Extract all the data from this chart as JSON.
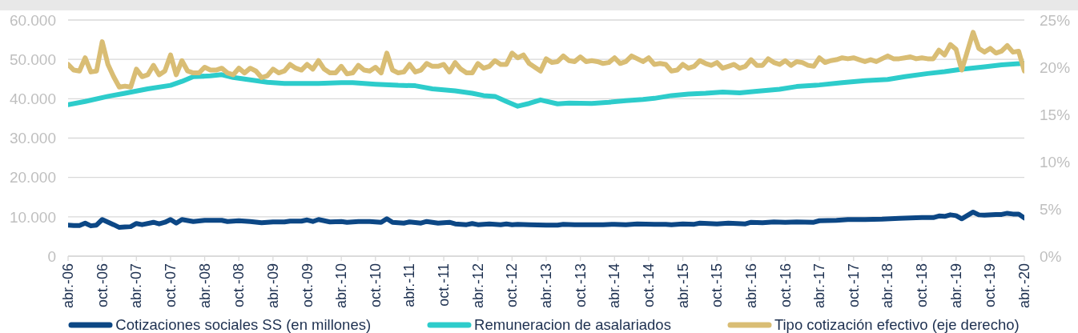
{
  "chart_data": {
    "type": "line",
    "xlim": [
      "2006-04",
      "2020-04"
    ],
    "xticks": [
      {
        "value": "2006-04",
        "label": "abr.-06"
      },
      {
        "value": "2006-10",
        "label": "oct.-06"
      },
      {
        "value": "2007-04",
        "label": "abr.-07"
      },
      {
        "value": "2007-10",
        "label": "oct.-07"
      },
      {
        "value": "2008-04",
        "label": "abr.-08"
      },
      {
        "value": "2008-10",
        "label": "oct.-08"
      },
      {
        "value": "2009-04",
        "label": "abr.-09"
      },
      {
        "value": "2009-10",
        "label": "oct.-09"
      },
      {
        "value": "2010-04",
        "label": "abr.-10"
      },
      {
        "value": "2010-10",
        "label": "oct.-10"
      },
      {
        "value": "2011-04",
        "label": "abr.-11"
      },
      {
        "value": "2011-10",
        "label": "oct.-11"
      },
      {
        "value": "2012-04",
        "label": "abr.-12"
      },
      {
        "value": "2012-10",
        "label": "oct.-12"
      },
      {
        "value": "2013-04",
        "label": "abr.-13"
      },
      {
        "value": "2013-10",
        "label": "oct.-13"
      },
      {
        "value": "2014-04",
        "label": "abr.-14"
      },
      {
        "value": "2014-10",
        "label": "oct.-14"
      },
      {
        "value": "2015-04",
        "label": "abr.-15"
      },
      {
        "value": "2015-10",
        "label": "oct.-15"
      },
      {
        "value": "2016-04",
        "label": "abr.-16"
      },
      {
        "value": "2016-10",
        "label": "oct.-16"
      },
      {
        "value": "2017-04",
        "label": "abr.-17"
      },
      {
        "value": "2017-10",
        "label": "oct.-17"
      },
      {
        "value": "2018-04",
        "label": "abr.-18"
      },
      {
        "value": "2018-10",
        "label": "oct.-18"
      },
      {
        "value": "2019-04",
        "label": "abr.-19"
      },
      {
        "value": "2019-10",
        "label": "oct.-19"
      },
      {
        "value": "2020-04",
        "label": "abr.-20"
      }
    ],
    "ylim": [
      0,
      60000
    ],
    "yticks": [
      0,
      {
        "value": 10000,
        "label": "10.000"
      },
      {
        "value": 20000,
        "label": "20.000"
      },
      {
        "value": 30000,
        "label": "30.000"
      },
      {
        "value": 40000,
        "label": "40.000"
      },
      {
        "value": 50000,
        "label": "50.000"
      },
      {
        "value": 60000,
        "label": "60.000"
      }
    ],
    "y2lim": [
      0,
      25
    ],
    "y2ticks": [
      {
        "value": 0,
        "label": "0%"
      },
      {
        "value": 5,
        "label": "5%"
      },
      {
        "value": 10,
        "label": "10%"
      },
      {
        "value": 15,
        "label": "15%"
      },
      {
        "value": 20,
        "label": "20%"
      },
      {
        "value": 25,
        "label": "25%"
      }
    ],
    "grid": "y",
    "legend": "bottom",
    "series": [
      {
        "name": "Cotizaciones sociales SS (en millones)",
        "color": "#0c4785",
        "x": [
          "2006-04",
          "2006-05",
          "2006-06",
          "2006-07",
          "2006-08",
          "2006-09",
          "2006-10",
          "2006-12",
          "2007-01",
          "2007-02",
          "2007-03",
          "2007-04",
          "2007-05",
          "2007-07",
          "2007-08",
          "2007-09",
          "2007-10",
          "2007-11",
          "2007-12",
          "2008-02",
          "2008-04",
          "2008-07",
          "2008-08",
          "2008-10",
          "2008-12",
          "2009-02",
          "2009-04",
          "2009-06",
          "2009-07",
          "2009-09",
          "2009-10",
          "2009-11",
          "2009-12",
          "2010-02",
          "2010-04",
          "2010-05",
          "2010-07",
          "2010-09",
          "2010-11",
          "2010-12",
          "2011-01",
          "2011-03",
          "2011-04",
          "2011-06",
          "2011-07",
          "2011-09",
          "2011-11",
          "2011-12",
          "2012-02",
          "2012-03",
          "2012-04",
          "2012-06",
          "2012-08",
          "2012-09",
          "2012-10",
          "2012-11",
          "2013-01",
          "2013-04",
          "2013-06",
          "2013-07",
          "2013-09",
          "2013-12",
          "2014-02",
          "2014-04",
          "2014-06",
          "2014-08",
          "2014-11",
          "2015-01",
          "2015-02",
          "2015-04",
          "2015-06",
          "2015-07",
          "2015-10",
          "2015-12",
          "2016-03",
          "2016-04",
          "2016-06",
          "2016-08",
          "2016-10",
          "2016-12",
          "2017-03",
          "2017-04",
          "2017-07",
          "2017-09",
          "2017-12",
          "2018-03",
          "2018-06",
          "2018-08",
          "2018-10",
          "2018-12",
          "2019-01",
          "2019-02",
          "2019-03",
          "2019-04",
          "2019-05",
          "2019-07",
          "2019-08",
          "2019-09",
          "2019-11",
          "2019-12",
          "2020-01",
          "2020-02",
          "2020-03",
          "2020-04"
        ],
        "values": [
          7900,
          7800,
          7800,
          8400,
          7700,
          7900,
          9300,
          8000,
          7300,
          7400,
          7500,
          8300,
          8000,
          8600,
          8200,
          8600,
          9300,
          8400,
          9300,
          8800,
          9100,
          9100,
          8800,
          9000,
          8800,
          8500,
          8700,
          8700,
          8900,
          8900,
          9200,
          8800,
          9300,
          8700,
          8800,
          8600,
          8800,
          8800,
          8600,
          9500,
          8600,
          8400,
          8700,
          8400,
          8800,
          8400,
          8600,
          8200,
          8000,
          8300,
          8000,
          8200,
          8000,
          8200,
          8000,
          8100,
          8000,
          7900,
          7900,
          8100,
          8000,
          8000,
          8000,
          8100,
          8000,
          8200,
          8100,
          8100,
          8000,
          8200,
          8100,
          8400,
          8200,
          8400,
          8200,
          8600,
          8500,
          8700,
          8600,
          8700,
          8600,
          9000,
          9100,
          9300,
          9300,
          9400,
          9600,
          9700,
          9800,
          9800,
          10200,
          10100,
          10500,
          10300,
          9500,
          11200,
          10500,
          10400,
          10600,
          10600,
          10900,
          10700,
          10700,
          9700
        ]
      },
      {
        "name": "Remuneracion de asalariados",
        "color": "#2dcccb",
        "x": [
          "2006-04",
          "2006-07",
          "2006-11",
          "2007-02",
          "2007-06",
          "2007-10",
          "2007-12",
          "2008-02",
          "2008-05",
          "2008-07",
          "2008-09",
          "2008-12",
          "2009-03",
          "2009-06",
          "2009-10",
          "2009-12",
          "2010-04",
          "2010-06",
          "2010-10",
          "2011-02",
          "2011-05",
          "2011-08",
          "2011-12",
          "2012-03",
          "2012-05",
          "2012-07",
          "2012-09",
          "2012-11",
          "2013-01",
          "2013-03",
          "2013-06",
          "2013-08",
          "2013-12",
          "2014-03",
          "2014-06",
          "2014-09",
          "2014-11",
          "2015-02",
          "2015-05",
          "2015-08",
          "2015-11",
          "2016-02",
          "2016-05",
          "2016-09",
          "2016-12",
          "2017-04",
          "2017-08",
          "2017-12",
          "2018-04",
          "2018-07",
          "2018-11",
          "2019-02",
          "2019-05",
          "2019-09",
          "2019-12",
          "2020-04"
        ],
        "values": [
          38500,
          39300,
          40600,
          41400,
          42500,
          43400,
          44400,
          45600,
          45800,
          46100,
          45400,
          44800,
          44200,
          43900,
          43900,
          43900,
          44100,
          44100,
          43700,
          43400,
          43300,
          42500,
          42000,
          41400,
          40800,
          40600,
          39300,
          38100,
          38800,
          39700,
          38700,
          38900,
          38800,
          39100,
          39500,
          39800,
          40100,
          40800,
          41200,
          41400,
          41700,
          41500,
          41900,
          42400,
          43100,
          43500,
          44100,
          44600,
          44900,
          45600,
          46400,
          46900,
          47500,
          48100,
          48600,
          49000
        ]
      },
      {
        "name": "Tipo cotización efectivo (eje derecho)",
        "color": "#d9bd74",
        "axis": "y2",
        "x": [
          "2006-04",
          "2006-05",
          "2006-06",
          "2006-07",
          "2006-08",
          "2006-09",
          "2006-10",
          "2006-11",
          "2006-12",
          "2007-01",
          "2007-02",
          "2007-03",
          "2007-04",
          "2007-05",
          "2007-06",
          "2007-07",
          "2007-08",
          "2007-09",
          "2007-10",
          "2007-11",
          "2007-12",
          "2008-01",
          "2008-02",
          "2008-03",
          "2008-04",
          "2008-05",
          "2008-06",
          "2008-07",
          "2008-08",
          "2008-09",
          "2008-10",
          "2008-11",
          "2008-12",
          "2009-01",
          "2009-02",
          "2009-03",
          "2009-04",
          "2009-05",
          "2009-06",
          "2009-07",
          "2009-08",
          "2009-09",
          "2009-10",
          "2009-11",
          "2009-12",
          "2010-01",
          "2010-02",
          "2010-03",
          "2010-04",
          "2010-05",
          "2010-06",
          "2010-07",
          "2010-08",
          "2010-09",
          "2010-10",
          "2010-11",
          "2010-12",
          "2011-01",
          "2011-02",
          "2011-03",
          "2011-04",
          "2011-05",
          "2011-06",
          "2011-07",
          "2011-08",
          "2011-09",
          "2011-10",
          "2011-11",
          "2011-12",
          "2012-01",
          "2012-02",
          "2012-03",
          "2012-04",
          "2012-05",
          "2012-06",
          "2012-07",
          "2012-08",
          "2012-09",
          "2012-10",
          "2012-11",
          "2012-12",
          "2013-01",
          "2013-02",
          "2013-03",
          "2013-04",
          "2013-05",
          "2013-06",
          "2013-07",
          "2013-08",
          "2013-09",
          "2013-10",
          "2013-11",
          "2013-12",
          "2014-01",
          "2014-02",
          "2014-03",
          "2014-04",
          "2014-05",
          "2014-06",
          "2014-07",
          "2014-08",
          "2014-09",
          "2014-10",
          "2014-11",
          "2014-12",
          "2015-01",
          "2015-02",
          "2015-03",
          "2015-04",
          "2015-05",
          "2015-06",
          "2015-07",
          "2015-08",
          "2015-09",
          "2015-10",
          "2015-11",
          "2015-12",
          "2016-01",
          "2016-02",
          "2016-03",
          "2016-04",
          "2016-05",
          "2016-06",
          "2016-07",
          "2016-08",
          "2016-09",
          "2016-10",
          "2016-11",
          "2016-12",
          "2017-01",
          "2017-02",
          "2017-03",
          "2017-04",
          "2017-05",
          "2017-06",
          "2017-07",
          "2017-08",
          "2017-09",
          "2017-10",
          "2017-11",
          "2017-12",
          "2018-01",
          "2018-02",
          "2018-03",
          "2018-04",
          "2018-05",
          "2018-06",
          "2018-07",
          "2018-08",
          "2018-09",
          "2018-10",
          "2018-11",
          "2018-12",
          "2019-01",
          "2019-02",
          "2019-03",
          "2019-04",
          "2019-05",
          "2019-06",
          "2019-07",
          "2019-08",
          "2019-09",
          "2019-10",
          "2019-11",
          "2019-12",
          "2020-01",
          "2020-02",
          "2020-03",
          "2020-04"
        ],
        "values": [
          20.3,
          19.7,
          19.6,
          21.0,
          19.5,
          19.6,
          22.7,
          20.3,
          19.0,
          17.9,
          18.0,
          17.9,
          19.8,
          19.0,
          19.2,
          20.2,
          19.2,
          19.6,
          21.3,
          19.2,
          20.7,
          19.6,
          19.4,
          19.4,
          20.0,
          19.7,
          19.7,
          19.9,
          19.4,
          19.2,
          19.9,
          19.4,
          19.9,
          19.6,
          18.9,
          19.1,
          19.8,
          19.4,
          19.6,
          20.3,
          19.9,
          19.7,
          20.3,
          19.8,
          20.7,
          19.8,
          19.4,
          19.4,
          20.1,
          19.3,
          19.4,
          20.2,
          19.7,
          19.6,
          20.0,
          19.4,
          21.5,
          19.7,
          19.4,
          19.5,
          20.3,
          19.5,
          19.7,
          20.4,
          20.1,
          20.1,
          20.3,
          19.5,
          20.5,
          19.8,
          19.4,
          19.4,
          20.4,
          19.9,
          20.1,
          20.7,
          20.3,
          20.3,
          21.5,
          21.0,
          21.3,
          20.4,
          20.0,
          19.6,
          20.9,
          20.5,
          20.6,
          21.2,
          20.7,
          20.6,
          21.1,
          20.6,
          20.7,
          20.6,
          20.4,
          20.5,
          21.0,
          20.4,
          20.6,
          21.2,
          20.9,
          20.6,
          21.0,
          20.3,
          20.4,
          20.3,
          19.6,
          19.7,
          20.3,
          19.9,
          20.1,
          20.7,
          20.4,
          20.2,
          20.5,
          19.9,
          20.1,
          20.3,
          19.9,
          20.1,
          20.8,
          20.2,
          20.2,
          20.9,
          20.5,
          20.3,
          20.7,
          20.2,
          20.6,
          20.5,
          20.2,
          20.1,
          21.0,
          20.5,
          20.7,
          20.8,
          21.0,
          20.9,
          21.0,
          20.8,
          20.6,
          20.8,
          20.6,
          20.9,
          21.2,
          20.9,
          20.9,
          21.0,
          21.1,
          20.9,
          21.0,
          20.9,
          20.9,
          21.8,
          21.3,
          22.4,
          21.9,
          19.7,
          21.7,
          23.7,
          22.0,
          21.6,
          22.0,
          21.5,
          21.7,
          22.3,
          21.6,
          21.7,
          19.6
        ]
      }
    ]
  }
}
